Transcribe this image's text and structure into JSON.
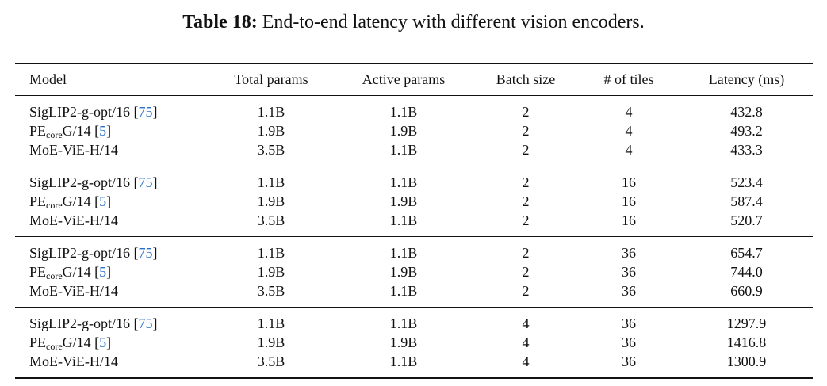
{
  "caption": {
    "label": "Table 18:",
    "text": "End-to-end latency with different vision encoders."
  },
  "headers": [
    "Model",
    "Total params",
    "Active params",
    "Batch size",
    "# of tiles",
    "Latency (ms)"
  ],
  "groups": [
    {
      "rows": [
        {
          "model": "SigLIP2-g-opt/16",
          "ref": "75",
          "total": "1.1B",
          "active": "1.1B",
          "batch": "2",
          "tiles": "4",
          "latency": "432.8"
        },
        {
          "model_pre": "PE",
          "model_sub": "core",
          "model_post": "G/14",
          "ref": "5",
          "total": "1.9B",
          "active": "1.9B",
          "batch": "2",
          "tiles": "4",
          "latency": "493.2"
        },
        {
          "model": "MoE-ViE-H/14",
          "total": "3.5B",
          "active": "1.1B",
          "batch": "2",
          "tiles": "4",
          "latency": "433.3"
        }
      ]
    },
    {
      "rows": [
        {
          "model": "SigLIP2-g-opt/16",
          "ref": "75",
          "total": "1.1B",
          "active": "1.1B",
          "batch": "2",
          "tiles": "16",
          "latency": "523.4"
        },
        {
          "model_pre": "PE",
          "model_sub": "core",
          "model_post": "G/14",
          "ref": "5",
          "total": "1.9B",
          "active": "1.9B",
          "batch": "2",
          "tiles": "16",
          "latency": "587.4"
        },
        {
          "model": "MoE-ViE-H/14",
          "total": "3.5B",
          "active": "1.1B",
          "batch": "2",
          "tiles": "16",
          "latency": "520.7"
        }
      ]
    },
    {
      "rows": [
        {
          "model": "SigLIP2-g-opt/16",
          "ref": "75",
          "total": "1.1B",
          "active": "1.1B",
          "batch": "2",
          "tiles": "36",
          "latency": "654.7"
        },
        {
          "model_pre": "PE",
          "model_sub": "core",
          "model_post": "G/14",
          "ref": "5",
          "total": "1.9B",
          "active": "1.9B",
          "batch": "2",
          "tiles": "36",
          "latency": "744.0"
        },
        {
          "model": "MoE-ViE-H/14",
          "total": "3.5B",
          "active": "1.1B",
          "batch": "2",
          "tiles": "36",
          "latency": "660.9"
        }
      ]
    },
    {
      "rows": [
        {
          "model": "SigLIP2-g-opt/16",
          "ref": "75",
          "total": "1.1B",
          "active": "1.1B",
          "batch": "4",
          "tiles": "36",
          "latency": "1297.9"
        },
        {
          "model_pre": "PE",
          "model_sub": "core",
          "model_post": "G/14",
          "ref": "5",
          "total": "1.9B",
          "active": "1.9B",
          "batch": "4",
          "tiles": "36",
          "latency": "1416.8"
        },
        {
          "model": "MoE-ViE-H/14",
          "total": "3.5B",
          "active": "1.1B",
          "batch": "4",
          "tiles": "36",
          "latency": "1300.9"
        }
      ]
    }
  ]
}
